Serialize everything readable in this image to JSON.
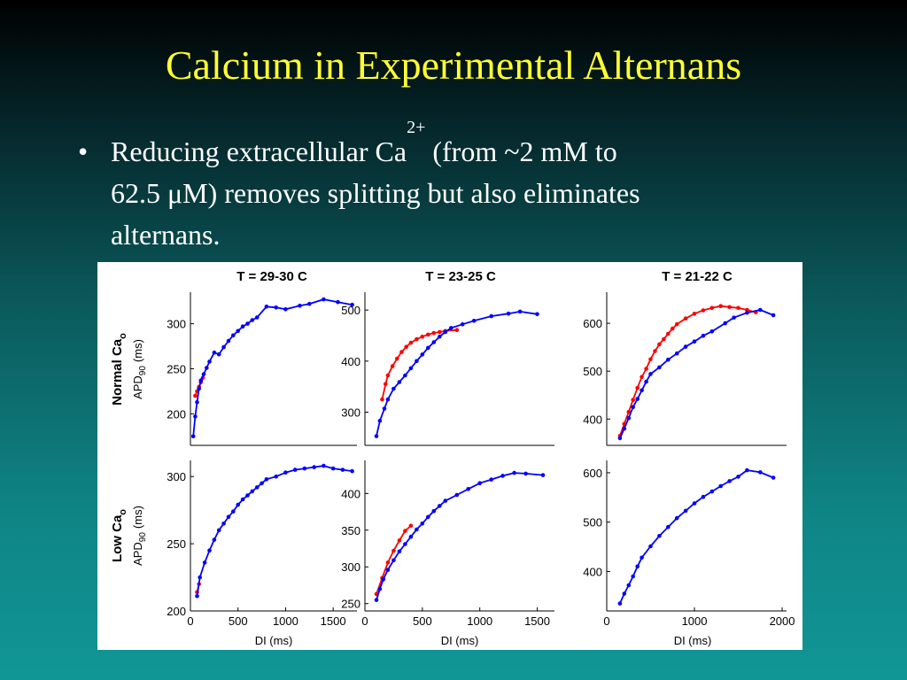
{
  "slide": {
    "title": "Calcium in Experimental Alternans",
    "bullet_symbol": "•",
    "bullet_line1_pre": "Reducing extracellular Ca",
    "bullet_sup": "2+",
    "bullet_line1_post": " (from ~2 mM to",
    "bullet_line2": "62.5 μM) removes splitting but also eliminates",
    "bullet_line3": "alternans."
  },
  "figure": {
    "column_titles": [
      "T = 29-30 C",
      "T = 23-25 C",
      "T = 21-22 C"
    ],
    "row_labels": [
      {
        "main": "Normal Ca",
        "sub": "o"
      },
      {
        "main": "Low Ca",
        "sub": "o"
      }
    ],
    "ylabel": {
      "main": "APD",
      "sub": "90",
      "unit": "(ms)"
    },
    "xlabel": "DI (ms)",
    "colors": {
      "series_red": "#ff0000",
      "series_blue": "#0000ff",
      "axis": "#000000"
    }
  },
  "chart_data": [
    {
      "type": "line",
      "panel": "normal-29-30C",
      "title": "T = 29-30 C",
      "xlim": [
        0,
        1750
      ],
      "ylim": [
        165,
        335
      ],
      "xticks": [],
      "yticks": [
        200,
        250,
        300
      ],
      "series": [
        {
          "color": "#ff0000",
          "points": [
            [
              50,
              220
            ],
            [
              70,
              225
            ],
            [
              90,
              230
            ],
            [
              110,
              235
            ],
            [
              130,
              240
            ]
          ]
        },
        {
          "color": "#0000ff",
          "points": [
            [
              30,
              175
            ],
            [
              50,
              197
            ],
            [
              70,
              213
            ],
            [
              90,
              228
            ],
            [
              110,
              237
            ],
            [
              140,
              244
            ],
            [
              170,
              251
            ],
            [
              200,
              258
            ],
            [
              250,
              268
            ],
            [
              300,
              266
            ],
            [
              350,
              274
            ],
            [
              400,
              281
            ],
            [
              450,
              287
            ],
            [
              500,
              292
            ],
            [
              550,
              297
            ],
            [
              600,
              300
            ],
            [
              650,
              304
            ],
            [
              700,
              307
            ],
            [
              800,
              319
            ],
            [
              900,
              318
            ],
            [
              1000,
              316
            ],
            [
              1150,
              320
            ],
            [
              1250,
              322
            ],
            [
              1400,
              327
            ],
            [
              1550,
              324
            ],
            [
              1700,
              321
            ]
          ]
        }
      ]
    },
    {
      "type": "line",
      "panel": "normal-23-25C",
      "title": "T = 23-25 C",
      "xlim": [
        0,
        1650
      ],
      "ylim": [
        235,
        535
      ],
      "xticks": [],
      "yticks": [
        300,
        400,
        500
      ],
      "series": [
        {
          "color": "#ff0000",
          "points": [
            [
              150,
              325
            ],
            [
              180,
              355
            ],
            [
              200,
              372
            ],
            [
              240,
              390
            ],
            [
              280,
              405
            ],
            [
              320,
              418
            ],
            [
              360,
              428
            ],
            [
              400,
              436
            ],
            [
              450,
              443
            ],
            [
              500,
              448
            ],
            [
              550,
              452
            ],
            [
              600,
              455
            ],
            [
              650,
              457
            ],
            [
              700,
              459
            ],
            [
              800,
              461
            ]
          ]
        },
        {
          "color": "#0000ff",
          "points": [
            [
              100,
              253
            ],
            [
              130,
              283
            ],
            [
              170,
              307
            ],
            [
              200,
              325
            ],
            [
              250,
              346
            ],
            [
              300,
              359
            ],
            [
              350,
              372
            ],
            [
              400,
              386
            ],
            [
              450,
              400
            ],
            [
              500,
              413
            ],
            [
              550,
              426
            ],
            [
              600,
              437
            ],
            [
              650,
              448
            ],
            [
              700,
              457
            ],
            [
              750,
              465
            ],
            [
              850,
              472
            ],
            [
              950,
              479
            ],
            [
              1100,
              488
            ],
            [
              1250,
              493
            ],
            [
              1350,
              497
            ],
            [
              1500,
              492
            ]
          ]
        }
      ]
    },
    {
      "type": "line",
      "panel": "normal-21-22C",
      "title": "T = 21-22 C",
      "xlim": [
        0,
        2050
      ],
      "ylim": [
        345,
        665
      ],
      "xticks": [],
      "yticks": [
        400,
        500,
        600
      ],
      "series": [
        {
          "color": "#ff0000",
          "points": [
            [
              150,
              365
            ],
            [
              200,
              390
            ],
            [
              250,
              415
            ],
            [
              300,
              440
            ],
            [
              350,
              465
            ],
            [
              400,
              488
            ],
            [
              450,
              505
            ],
            [
              500,
              525
            ],
            [
              550,
              542
            ],
            [
              600,
              556
            ],
            [
              650,
              567
            ],
            [
              700,
              578
            ],
            [
              750,
              589
            ],
            [
              800,
              598
            ],
            [
              900,
              610
            ],
            [
              1000,
              620
            ],
            [
              1100,
              627
            ],
            [
              1200,
              632
            ],
            [
              1300,
              636
            ],
            [
              1400,
              634
            ],
            [
              1500,
              632
            ],
            [
              1600,
              628
            ],
            [
              1700,
              623
            ]
          ]
        },
        {
          "color": "#0000ff",
          "points": [
            [
              150,
              360
            ],
            [
              200,
              380
            ],
            [
              250,
              402
            ],
            [
              300,
              425
            ],
            [
              350,
              442
            ],
            [
              400,
              460
            ],
            [
              450,
              478
            ],
            [
              500,
              494
            ],
            [
              600,
              508
            ],
            [
              700,
              524
            ],
            [
              800,
              537
            ],
            [
              900,
              551
            ],
            [
              1000,
              562
            ],
            [
              1100,
              574
            ],
            [
              1200,
              583
            ],
            [
              1350,
              600
            ],
            [
              1450,
              612
            ],
            [
              1600,
              622
            ],
            [
              1750,
              628
            ],
            [
              1900,
              617
            ]
          ]
        }
      ]
    },
    {
      "type": "line",
      "panel": "low-29-30C",
      "title": "",
      "xlim": [
        0,
        1750
      ],
      "ylim": [
        200,
        312
      ],
      "xticks": [
        0,
        500,
        1000,
        1500
      ],
      "yticks": [
        200,
        250,
        300
      ],
      "series": [
        {
          "color": "#ff0000",
          "points": [
            [
              70,
              214
            ],
            [
              90,
              220
            ]
          ]
        },
        {
          "color": "#0000ff",
          "points": [
            [
              70,
              211
            ],
            [
              100,
              225
            ],
            [
              150,
              236
            ],
            [
              200,
              245
            ],
            [
              250,
              253
            ],
            [
              300,
              260
            ],
            [
              350,
              265
            ],
            [
              400,
              270
            ],
            [
              450,
              274
            ],
            [
              500,
              279
            ],
            [
              550,
              283
            ],
            [
              600,
              286
            ],
            [
              650,
              289
            ],
            [
              700,
              292
            ],
            [
              750,
              295
            ],
            [
              800,
              298
            ],
            [
              900,
              300
            ],
            [
              1000,
              303
            ],
            [
              1100,
              305
            ],
            [
              1200,
              306
            ],
            [
              1300,
              307
            ],
            [
              1400,
              308
            ],
            [
              1500,
              306
            ],
            [
              1600,
              305
            ],
            [
              1700,
              304
            ]
          ]
        }
      ]
    },
    {
      "type": "line",
      "panel": "low-23-25C",
      "title": "",
      "xlim": [
        0,
        1650
      ],
      "ylim": [
        240,
        445
      ],
      "xticks": [
        0,
        500,
        1000,
        1500
      ],
      "yticks": [
        250,
        300,
        350,
        400
      ],
      "series": [
        {
          "color": "#ff0000",
          "points": [
            [
              100,
              263
            ],
            [
              150,
              285
            ],
            [
              200,
              306
            ],
            [
              250,
              322
            ],
            [
              300,
              336
            ],
            [
              350,
              349
            ],
            [
              400,
              356
            ]
          ]
        },
        {
          "color": "#0000ff",
          "points": [
            [
              100,
              255
            ],
            [
              130,
              270
            ],
            [
              160,
              283
            ],
            [
              200,
              296
            ],
            [
              250,
              309
            ],
            [
              300,
              321
            ],
            [
              350,
              331
            ],
            [
              400,
              341
            ],
            [
              450,
              351
            ],
            [
              500,
              359
            ],
            [
              550,
              368
            ],
            [
              600,
              376
            ],
            [
              650,
              383
            ],
            [
              700,
              390
            ],
            [
              800,
              398
            ],
            [
              900,
              406
            ],
            [
              1000,
              414
            ],
            [
              1100,
              419
            ],
            [
              1200,
              424
            ],
            [
              1300,
              428
            ],
            [
              1400,
              427
            ],
            [
              1550,
              425
            ]
          ]
        }
      ]
    },
    {
      "type": "line",
      "panel": "low-21-22C",
      "title": "",
      "xlim": [
        0,
        2050
      ],
      "ylim": [
        320,
        625
      ],
      "xticks": [
        0,
        1000,
        2000
      ],
      "yticks": [
        400,
        500,
        600
      ],
      "series": [
        {
          "color": "#0000ff",
          "points": [
            [
              150,
              335
            ],
            [
              200,
              355
            ],
            [
              250,
              372
            ],
            [
              300,
              390
            ],
            [
              350,
              410
            ],
            [
              400,
              428
            ],
            [
              500,
              451
            ],
            [
              600,
              472
            ],
            [
              700,
              490
            ],
            [
              800,
              508
            ],
            [
              900,
              523
            ],
            [
              1000,
              538
            ],
            [
              1100,
              551
            ],
            [
              1200,
              562
            ],
            [
              1300,
              573
            ],
            [
              1400,
              583
            ],
            [
              1500,
              592
            ],
            [
              1600,
              605
            ],
            [
              1750,
              601
            ],
            [
              1900,
              590
            ]
          ]
        }
      ]
    }
  ]
}
